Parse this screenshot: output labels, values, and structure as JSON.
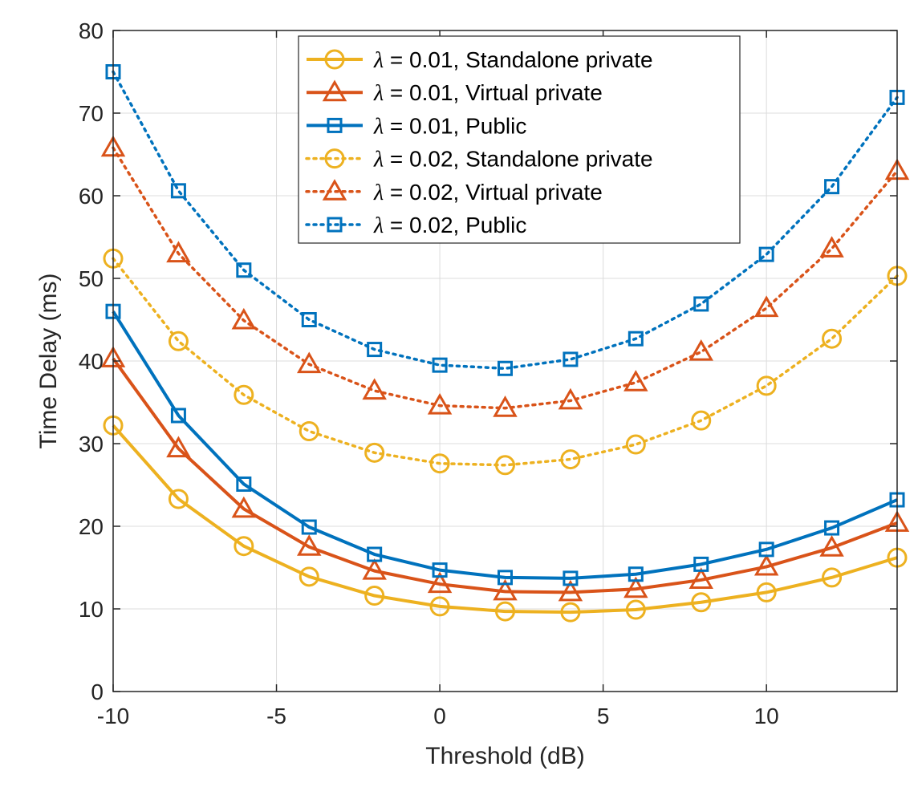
{
  "chart_data": {
    "type": "line",
    "title": "",
    "xlabel": "Threshold (dB)",
    "ylabel": "Time Delay (ms)",
    "xlim": [
      -10,
      14
    ],
    "ylim": [
      0,
      80
    ],
    "xticks": [
      -10,
      -5,
      0,
      5,
      10
    ],
    "xtick_labels": [
      "-10",
      "-5",
      "0",
      "5",
      "10"
    ],
    "yticks": [
      0,
      10,
      20,
      30,
      40,
      50,
      60,
      70,
      80
    ],
    "ytick_labels": [
      "0",
      "10",
      "20",
      "30",
      "40",
      "50",
      "60",
      "70",
      "80"
    ],
    "grid": true,
    "legend_position": "top-center",
    "x": [
      -10,
      -8,
      -6,
      -4,
      -2,
      0,
      2,
      4,
      6,
      8,
      10,
      12,
      14
    ],
    "series": [
      {
        "name": "λ = 0.01, Standalone private",
        "lambda_symbol": "λ",
        "label_rest": " = 0.01, Standalone private",
        "color": "#EDB120",
        "line_style": "solid",
        "marker": "circle",
        "values": [
          32.2,
          23.3,
          17.6,
          13.9,
          11.6,
          10.3,
          9.7,
          9.6,
          9.9,
          10.8,
          12.0,
          13.8,
          16.2
        ]
      },
      {
        "name": "λ = 0.01, Virtual private",
        "lambda_symbol": "λ",
        "label_rest": " = 0.01, Virtual private",
        "color": "#D95319",
        "line_style": "solid",
        "marker": "triangle",
        "values": [
          40.3,
          29.4,
          22.1,
          17.5,
          14.6,
          13.0,
          12.1,
          12.0,
          12.4,
          13.5,
          15.1,
          17.4,
          20.4
        ]
      },
      {
        "name": "λ = 0.01, Public",
        "lambda_symbol": "λ",
        "label_rest": " = 0.01, Public",
        "color": "#0072BD",
        "line_style": "solid",
        "marker": "square",
        "values": [
          46.0,
          33.4,
          25.1,
          19.9,
          16.6,
          14.7,
          13.8,
          13.7,
          14.2,
          15.4,
          17.2,
          19.8,
          23.2
        ]
      },
      {
        "name": "λ = 0.02, Standalone private",
        "lambda_symbol": "λ",
        "label_rest": " = 0.02, Standalone private",
        "color": "#EDB120",
        "line_style": "dotted",
        "marker": "circle",
        "values": [
          52.4,
          42.4,
          35.9,
          31.5,
          28.9,
          27.6,
          27.4,
          28.1,
          29.9,
          32.8,
          37.0,
          42.7,
          50.3
        ]
      },
      {
        "name": "λ = 0.02, Virtual private",
        "lambda_symbol": "λ",
        "label_rest": " = 0.02, Virtual private",
        "color": "#D95319",
        "line_style": "dotted",
        "marker": "triangle",
        "values": [
          65.8,
          53.0,
          44.9,
          39.6,
          36.4,
          34.6,
          34.3,
          35.2,
          37.4,
          41.1,
          46.4,
          53.6,
          63.0
        ]
      },
      {
        "name": "λ = 0.02, Public",
        "lambda_symbol": "λ",
        "label_rest": " = 0.02, Public",
        "color": "#0072BD",
        "line_style": "dotted",
        "marker": "square",
        "values": [
          75.0,
          60.6,
          51.0,
          45.0,
          41.4,
          39.5,
          39.1,
          40.2,
          42.7,
          46.9,
          52.9,
          61.1,
          71.9
        ]
      }
    ]
  }
}
